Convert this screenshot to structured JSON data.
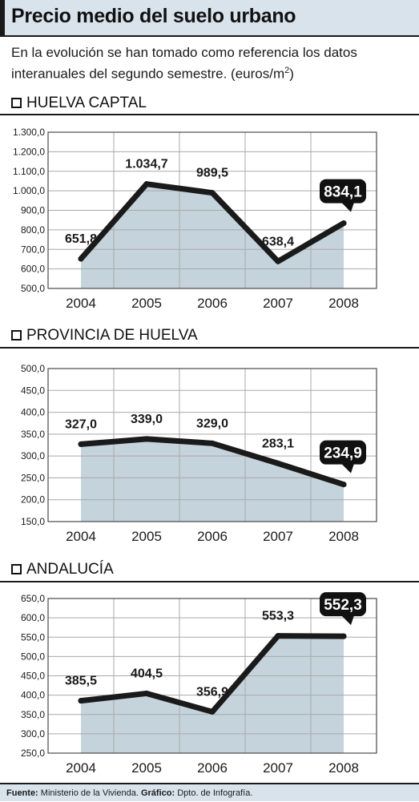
{
  "header": {
    "title": "Precio medio del suelo urbano",
    "subtitle_main": "En la evolución se han tomado como referencia los datos interanuales del segundo semestre. (euros/m",
    "subtitle_sup": "2",
    "subtitle_end": ")"
  },
  "footer": {
    "source_label": "Fuente:",
    "source_value": "Ministerio de la Vivienda.",
    "graphic_label": "Gráfico:",
    "graphic_value": "Dpto. de Infografía."
  },
  "colors": {
    "header_bg": "#d9e3ec",
    "area_fill": "#c5d3dc",
    "line": "#1a1a1a",
    "grid": "#a9a9a9"
  },
  "chart_data": [
    {
      "type": "area",
      "title": "HUELVA CAPTAL",
      "categories": [
        "2004",
        "2005",
        "2006",
        "2007",
        "2008"
      ],
      "values": [
        651.8,
        1034.7,
        989.5,
        638.4,
        834.1
      ],
      "value_labels": [
        "651,8",
        "1.034,7",
        "989,5",
        "638,4",
        "834,1"
      ],
      "highlight_index": 4,
      "yticks": [
        "500,0",
        "600,0",
        "700,0",
        "800,0",
        "900,0",
        "1.000,0",
        "1.100,0",
        "1.200,0",
        "1.300,0"
      ],
      "ylim": [
        500,
        1300
      ],
      "grid": true
    },
    {
      "type": "area",
      "title": "PROVINCIA DE HUELVA",
      "categories": [
        "2004",
        "2005",
        "2006",
        "2007",
        "2008"
      ],
      "values": [
        327.0,
        339.0,
        329.0,
        283.1,
        234.9
      ],
      "value_labels": [
        "327,0",
        "339,0",
        "329,0",
        "283,1",
        "234,9"
      ],
      "highlight_index": 4,
      "yticks": [
        "150,0",
        "200,0",
        "250,0",
        "300,0",
        "350,0",
        "400,0",
        "450,0",
        "500,0"
      ],
      "ylim": [
        150,
        500
      ],
      "grid": true
    },
    {
      "type": "area",
      "title": "ANDALUCÍA",
      "categories": [
        "2004",
        "2005",
        "2006",
        "2007",
        "2008"
      ],
      "values": [
        385.5,
        404.5,
        356.9,
        553.3,
        552.3
      ],
      "value_labels": [
        "385,5",
        "404,5",
        "356,9",
        "553,3",
        "552,3"
      ],
      "highlight_index": 4,
      "yticks": [
        "250,0",
        "300,0",
        "350,0",
        "400,0",
        "450,0",
        "500,0",
        "550,0",
        "600,0",
        "650,0"
      ],
      "ylim": [
        250,
        650
      ],
      "grid": true
    }
  ]
}
